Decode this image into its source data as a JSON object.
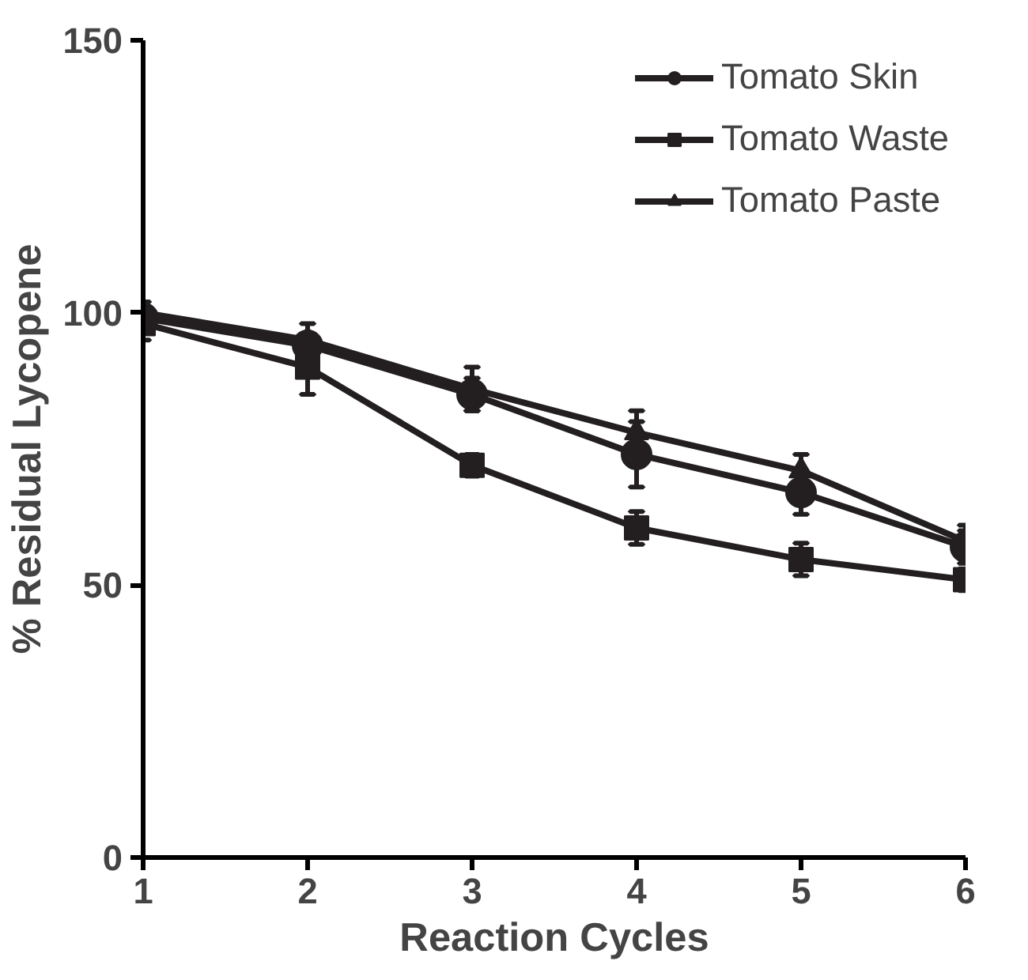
{
  "chart_data": {
    "type": "line",
    "xlabel": "Reaction Cycles",
    "ylabel": "% Residual Lycopene",
    "x": [
      1,
      2,
      3,
      4,
      5,
      6
    ],
    "xlim": [
      1,
      6
    ],
    "xticks": [
      1,
      2,
      3,
      4,
      5,
      6
    ],
    "ylim": [
      0,
      150
    ],
    "yticks": [
      0,
      50,
      100,
      150
    ],
    "grid": false,
    "legend": "top right",
    "series": [
      {
        "name": "Tomato Skin",
        "color": "#231f20",
        "marker": "circle",
        "values": [
          99,
          94,
          85,
          74,
          67,
          57
        ],
        "errors": [
          2,
          2,
          3,
          6,
          4,
          3
        ]
      },
      {
        "name": "Tomato Waste",
        "color": "#231f20",
        "marker": "square",
        "values": [
          98,
          90,
          72,
          60.5,
          54.7,
          51
        ],
        "errors": [
          3,
          5,
          2,
          3,
          3,
          2
        ]
      },
      {
        "name": "Tomato Paste",
        "color": "#231f20",
        "marker": "triangle",
        "values": [
          100,
          95,
          86,
          78,
          71,
          58
        ],
        "errors": [
          2,
          3,
          4,
          4,
          3,
          3
        ]
      }
    ]
  }
}
